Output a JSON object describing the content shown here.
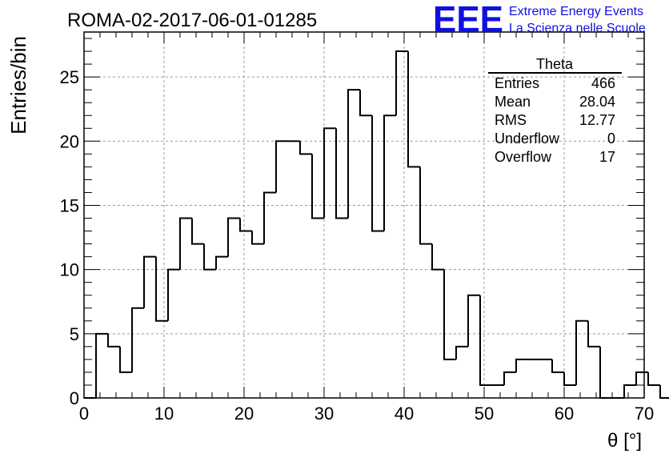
{
  "header": {
    "title": "ROMA-02-2017-06-01-01285",
    "logo_text": "EEE",
    "logo_line1": "Extreme Energy Events",
    "logo_line2": "La Scienza nelle Scuole"
  },
  "colors": {
    "logo": "#1010e0",
    "line": "#000000",
    "grid": "#9a9a9a"
  },
  "stats": {
    "title": "Theta",
    "rows": [
      {
        "label": "Entries",
        "value": "466"
      },
      {
        "label": "Mean",
        "value": "28.04"
      },
      {
        "label": "RMS",
        "value": "12.77"
      },
      {
        "label": "Underflow",
        "value": "0"
      },
      {
        "label": "Overflow",
        "value": "17"
      }
    ]
  },
  "chart_data": {
    "type": "bar",
    "histogram": true,
    "xlabel": "θ [°]",
    "ylabel": "Entries/bin",
    "xlim": [
      0,
      70
    ],
    "ylim": [
      0,
      28.5
    ],
    "grid": true,
    "bin_width": 1.5,
    "bin_edges_start": 0,
    "values": [
      0,
      5,
      4,
      2,
      7,
      11,
      6,
      10,
      14,
      12,
      10,
      11,
      14,
      13,
      12,
      16,
      20,
      20,
      19,
      14,
      21,
      14,
      24,
      22,
      13,
      22,
      27,
      18,
      12,
      10,
      3,
      4,
      8,
      1,
      1,
      2,
      3,
      3,
      3,
      2,
      1,
      6,
      4,
      0,
      0,
      1,
      2,
      1,
      0
    ],
    "xticks": [
      "0",
      "10",
      "20",
      "30",
      "40",
      "50",
      "60",
      "70"
    ],
    "yticks": [
      "0",
      "5",
      "10",
      "15",
      "20",
      "25"
    ],
    "xtick_values": [
      0,
      10,
      20,
      30,
      40,
      50,
      60,
      70
    ],
    "ytick_values": [
      0,
      5,
      10,
      15,
      20,
      25
    ]
  }
}
